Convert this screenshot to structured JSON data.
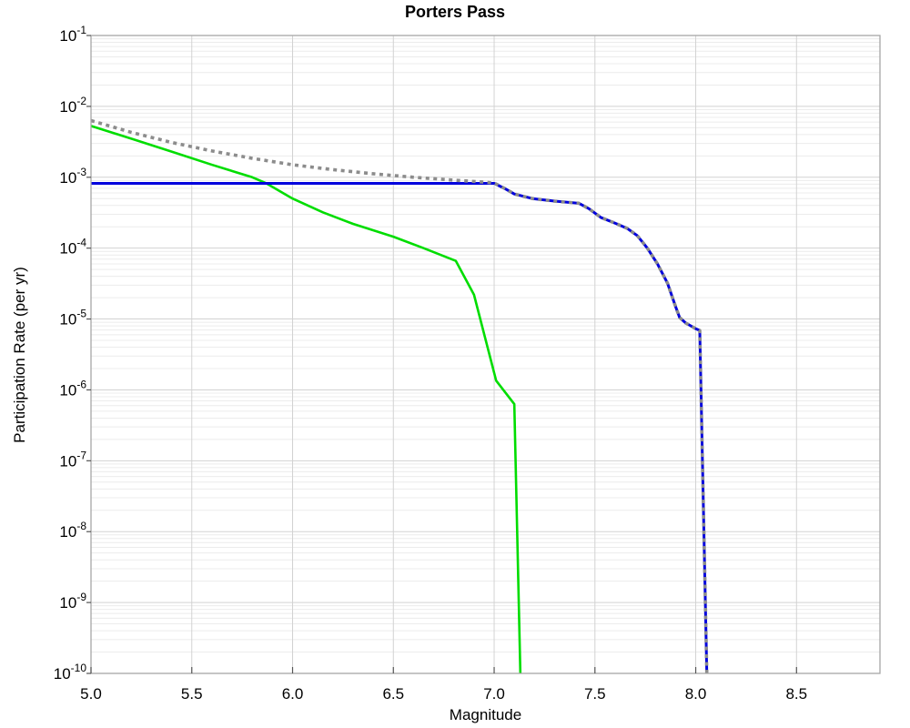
{
  "chart_data": {
    "type": "line",
    "title": "Porters Pass",
    "xlabel": "Magnitude",
    "ylabel": "Participation Rate (per yr)",
    "xlim": [
      5.0,
      8.914
    ],
    "ylim": [
      1e-10,
      0.1
    ],
    "x_ticks": [
      5.0,
      5.5,
      6.0,
      6.5,
      7.0,
      7.5,
      8.0,
      8.5
    ],
    "x_tick_labels": [
      "5.0",
      "5.5",
      "6.0",
      "6.5",
      "7.0",
      "7.5",
      "8.0",
      "8.5"
    ],
    "y_tick_base": "10",
    "y_tick_exponents": [
      -1,
      -2,
      -3,
      -4,
      -5,
      -6,
      -7,
      -8,
      -9,
      -10
    ],
    "grid": {
      "horizontal_major": true,
      "horizontal_log_minor": true,
      "vertical_major": true
    },
    "legend_position": "none",
    "colors": {
      "frame": "#a6a6a6",
      "tick": "#555555",
      "grid_major": "#d2d2d2",
      "grid_minor": "#ececec",
      "background": "#ffffff"
    },
    "series": [
      {
        "name": "green-solid-curve",
        "color": "#00dd00",
        "style": "solid",
        "width": 2.6,
        "points": [
          [
            5.0,
            0.0053
          ],
          [
            5.2,
            0.0035
          ],
          [
            5.4,
            0.0023
          ],
          [
            5.6,
            0.0015
          ],
          [
            5.8,
            0.001
          ],
          [
            5.87,
            0.00082
          ],
          [
            6.0,
            0.0005
          ],
          [
            6.15,
            0.00032
          ],
          [
            6.3,
            0.00022
          ],
          [
            6.5,
            0.000145
          ],
          [
            6.65,
            0.0001
          ],
          [
            6.81,
            6.6e-05
          ],
          [
            6.9,
            2.2e-05
          ],
          [
            7.01,
            1.35e-06
          ],
          [
            7.1,
            6.3e-07
          ],
          [
            7.13,
            1e-10
          ]
        ]
      },
      {
        "name": "blue-solid-curve",
        "color": "#0000dd",
        "style": "solid",
        "width": 3,
        "points": [
          [
            5.0,
            0.00082
          ],
          [
            7.0,
            0.00082
          ],
          [
            7.05,
            0.0007
          ],
          [
            7.1,
            0.00058
          ],
          [
            7.19,
            0.0005
          ],
          [
            7.3,
            0.00046
          ],
          [
            7.42,
            0.00043
          ],
          [
            7.47,
            0.00036
          ],
          [
            7.53,
            0.00027
          ],
          [
            7.6,
            0.000225
          ],
          [
            7.66,
            0.00019
          ],
          [
            7.71,
            0.00015
          ],
          [
            7.76,
            0.0001
          ],
          [
            7.81,
            6e-05
          ],
          [
            7.86,
            3.2e-05
          ],
          [
            7.9,
            1.5e-05
          ],
          [
            7.92,
            1.05e-05
          ],
          [
            7.95,
            8.8e-06
          ],
          [
            8.0,
            7.3e-06
          ],
          [
            8.02,
            6.9e-06
          ],
          [
            8.055,
            1e-10
          ]
        ]
      },
      {
        "name": "gray-dotted-curve",
        "color": "#8c8c8c",
        "style": "dotted",
        "width": 3.6,
        "points": [
          [
            5.0,
            0.0063
          ],
          [
            5.2,
            0.0043
          ],
          [
            5.4,
            0.0031
          ],
          [
            5.6,
            0.00235
          ],
          [
            5.8,
            0.00185
          ],
          [
            6.0,
            0.0015
          ],
          [
            6.2,
            0.00128
          ],
          [
            6.4,
            0.00112
          ],
          [
            6.6,
            0.001
          ],
          [
            6.8,
            0.00091
          ],
          [
            6.95,
            0.000855
          ],
          [
            7.0,
            0.00083
          ],
          [
            7.05,
            0.0007
          ],
          [
            7.1,
            0.00058
          ],
          [
            7.19,
            0.0005
          ],
          [
            7.3,
            0.00046
          ],
          [
            7.42,
            0.00043
          ],
          [
            7.47,
            0.00036
          ],
          [
            7.53,
            0.00027
          ],
          [
            7.6,
            0.000225
          ],
          [
            7.66,
            0.00019
          ],
          [
            7.71,
            0.00015
          ],
          [
            7.76,
            0.0001
          ],
          [
            7.81,
            6e-05
          ],
          [
            7.86,
            3.2e-05
          ],
          [
            7.9,
            1.5e-05
          ],
          [
            7.92,
            1.05e-05
          ],
          [
            7.95,
            8.8e-06
          ],
          [
            8.0,
            7.3e-06
          ],
          [
            8.02,
            6.9e-06
          ],
          [
            8.055,
            1e-10
          ]
        ]
      }
    ]
  }
}
